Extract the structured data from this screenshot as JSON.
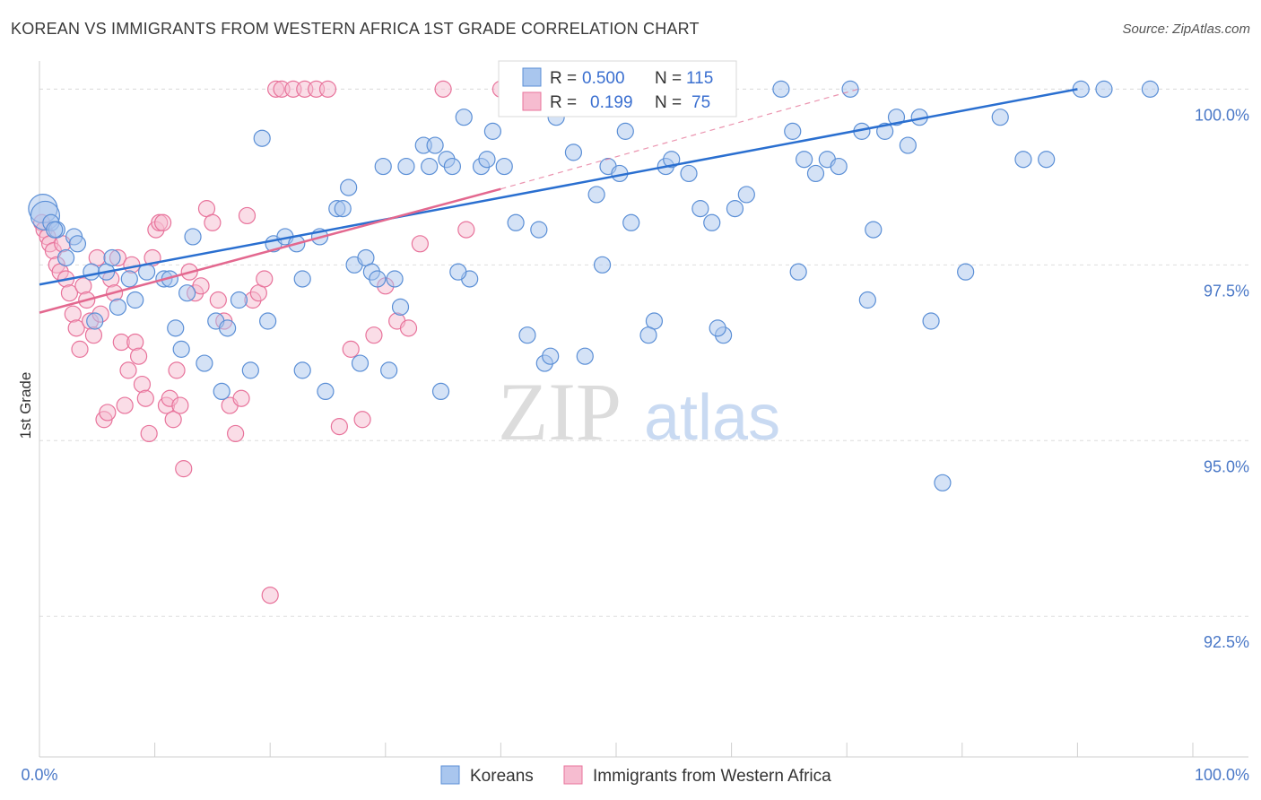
{
  "title": "KOREAN VS IMMIGRANTS FROM WESTERN AFRICA 1ST GRADE CORRELATION CHART",
  "source": "Source: ZipAtlas.com",
  "watermark": {
    "zip": "ZIP",
    "atlas": "atlas"
  },
  "colors": {
    "blue": "#5b8fd6",
    "blue_fill": "#a9c6ee",
    "pink": "#e8739b",
    "pink_fill": "#f6bcd0",
    "blue_line": "#2a6fd0",
    "pink_line": "#e3688f",
    "tick_text": "#4a78c7"
  },
  "stats_box": {
    "rows": [
      {
        "r_key": "R =",
        "r_val": "0.500",
        "n_key": "N =",
        "n_val": "115"
      },
      {
        "r_key": "R =",
        "r_val": "0.199",
        "n_key": "N =",
        "n_val": "75"
      }
    ]
  },
  "chart_data": {
    "type": "scatter",
    "title": "KOREAN VS IMMIGRANTS FROM WESTERN AFRICA 1ST GRADE CORRELATION CHART",
    "xlabel": "",
    "ylabel": "1st Grade",
    "xlim": [
      0,
      100
    ],
    "ylim": [
      90.5,
      100.4
    ],
    "x_tick_labels": [
      "0.0%",
      "100.0%"
    ],
    "y_ticks": [
      92.5,
      95.0,
      97.5,
      100.0
    ],
    "y_tick_labels": [
      "92.5%",
      "95.0%",
      "97.5%",
      "100.0%"
    ],
    "grid": true,
    "legend_position": "bottom",
    "series": [
      {
        "name": "Koreans",
        "R": 0.5,
        "N": 115,
        "trend": [
          [
            0,
            97.22
          ],
          [
            90,
            100.0
          ]
        ],
        "points": [
          [
            0.3,
            98.3
          ],
          [
            0.5,
            98.2
          ],
          [
            1.0,
            98.1
          ],
          [
            1.5,
            98.0
          ],
          [
            3.0,
            97.9
          ],
          [
            4.5,
            97.4
          ],
          [
            4.8,
            96.7
          ],
          [
            5.8,
            97.4
          ],
          [
            6.3,
            97.6
          ],
          [
            6.8,
            96.9
          ],
          [
            7.8,
            97.3
          ],
          [
            9.3,
            97.4
          ],
          [
            10.8,
            97.3
          ],
          [
            11.3,
            97.3
          ],
          [
            12.3,
            96.3
          ],
          [
            12.8,
            97.1
          ],
          [
            15.3,
            96.7
          ],
          [
            14.3,
            96.1
          ],
          [
            15.8,
            95.7
          ],
          [
            16.3,
            96.6
          ],
          [
            18.3,
            96.0
          ],
          [
            19.3,
            99.3
          ],
          [
            20.3,
            97.8
          ],
          [
            21.3,
            97.9
          ],
          [
            22.3,
            97.8
          ],
          [
            22.8,
            97.3
          ],
          [
            24.3,
            97.9
          ],
          [
            25.8,
            98.3
          ],
          [
            26.3,
            98.3
          ],
          [
            26.8,
            98.6
          ],
          [
            27.3,
            97.5
          ],
          [
            28.3,
            97.6
          ],
          [
            28.8,
            97.4
          ],
          [
            29.3,
            97.3
          ],
          [
            29.8,
            98.9
          ],
          [
            30.8,
            97.3
          ],
          [
            31.3,
            96.9
          ],
          [
            31.8,
            98.9
          ],
          [
            33.3,
            99.2
          ],
          [
            33.8,
            98.9
          ],
          [
            34.3,
            99.2
          ],
          [
            35.3,
            99.0
          ],
          [
            35.8,
            98.9
          ],
          [
            36.8,
            99.6
          ],
          [
            37.3,
            97.3
          ],
          [
            38.3,
            98.9
          ],
          [
            38.8,
            99.0
          ],
          [
            39.3,
            99.4
          ],
          [
            40.3,
            98.9
          ],
          [
            41.3,
            98.1
          ],
          [
            42.3,
            96.5
          ],
          [
            43.3,
            98.0
          ],
          [
            43.8,
            96.1
          ],
          [
            44.8,
            99.6
          ],
          [
            45.3,
            100.0
          ],
          [
            46.3,
            99.1
          ],
          [
            46.8,
            100.0
          ],
          [
            47.3,
            96.2
          ],
          [
            48.3,
            98.5
          ],
          [
            48.8,
            97.5
          ],
          [
            49.3,
            98.9
          ],
          [
            50.3,
            98.8
          ],
          [
            50.8,
            99.4
          ],
          [
            51.3,
            98.1
          ],
          [
            52.3,
            100.0
          ],
          [
            53.3,
            96.7
          ],
          [
            54.3,
            98.9
          ],
          [
            54.8,
            99.0
          ],
          [
            55.3,
            100.0
          ],
          [
            56.3,
            98.8
          ],
          [
            57.3,
            98.3
          ],
          [
            58.3,
            98.1
          ],
          [
            59.3,
            96.5
          ],
          [
            60.3,
            98.3
          ],
          [
            61.3,
            98.5
          ],
          [
            64.3,
            100.0
          ],
          [
            65.3,
            99.4
          ],
          [
            66.3,
            99.0
          ],
          [
            67.3,
            98.8
          ],
          [
            68.3,
            99.0
          ],
          [
            69.3,
            98.9
          ],
          [
            70.3,
            100.0
          ],
          [
            71.3,
            99.4
          ],
          [
            72.3,
            98.0
          ],
          [
            73.3,
            99.4
          ],
          [
            74.3,
            99.6
          ],
          [
            75.3,
            99.2
          ],
          [
            76.3,
            99.6
          ],
          [
            77.3,
            96.7
          ],
          [
            78.3,
            94.4
          ],
          [
            80.3,
            97.4
          ],
          [
            83.3,
            99.6
          ],
          [
            85.3,
            99.0
          ],
          [
            87.3,
            99.0
          ],
          [
            90.3,
            100.0
          ],
          [
            92.3,
            100.0
          ],
          [
            96.3,
            100.0
          ],
          [
            1.3,
            98.0
          ],
          [
            2.3,
            97.6
          ],
          [
            3.3,
            97.8
          ],
          [
            8.3,
            97.0
          ],
          [
            11.8,
            96.6
          ],
          [
            13.3,
            97.9
          ],
          [
            17.3,
            97.0
          ],
          [
            19.8,
            96.7
          ],
          [
            22.8,
            96.0
          ],
          [
            24.8,
            95.7
          ],
          [
            27.8,
            96.1
          ],
          [
            30.3,
            96.0
          ],
          [
            34.8,
            95.7
          ],
          [
            36.3,
            97.4
          ],
          [
            44.3,
            96.2
          ],
          [
            52.8,
            96.5
          ],
          [
            58.8,
            96.6
          ],
          [
            65.8,
            97.4
          ],
          [
            71.8,
            97.0
          ]
        ]
      },
      {
        "name": "Immigrants from Western Africa",
        "R": 0.199,
        "N": 75,
        "trend": [
          [
            0,
            96.82
          ],
          [
            40,
            98.58
          ]
        ],
        "trend_dashed": [
          [
            40,
            98.58
          ],
          [
            71,
            100.0
          ]
        ],
        "points": [
          [
            0.2,
            98.1
          ],
          [
            0.4,
            98.0
          ],
          [
            0.7,
            97.9
          ],
          [
            0.9,
            97.8
          ],
          [
            1.2,
            97.7
          ],
          [
            1.5,
            97.5
          ],
          [
            1.8,
            97.4
          ],
          [
            2.0,
            97.8
          ],
          [
            2.3,
            97.3
          ],
          [
            2.6,
            97.1
          ],
          [
            2.9,
            96.8
          ],
          [
            3.2,
            96.6
          ],
          [
            3.5,
            96.3
          ],
          [
            3.8,
            97.2
          ],
          [
            4.1,
            97.0
          ],
          [
            4.4,
            96.7
          ],
          [
            4.7,
            96.5
          ],
          [
            5.0,
            97.6
          ],
          [
            5.3,
            96.8
          ],
          [
            5.6,
            95.3
          ],
          [
            5.9,
            95.4
          ],
          [
            6.2,
            97.3
          ],
          [
            6.5,
            97.1
          ],
          [
            6.8,
            97.6
          ],
          [
            7.1,
            96.4
          ],
          [
            7.4,
            95.5
          ],
          [
            7.7,
            96.0
          ],
          [
            8.0,
            97.5
          ],
          [
            8.3,
            96.4
          ],
          [
            8.6,
            96.2
          ],
          [
            8.9,
            95.8
          ],
          [
            9.2,
            95.6
          ],
          [
            9.5,
            95.1
          ],
          [
            9.8,
            97.6
          ],
          [
            10.1,
            98.0
          ],
          [
            10.4,
            98.1
          ],
          [
            10.7,
            98.1
          ],
          [
            11.0,
            95.5
          ],
          [
            11.3,
            95.6
          ],
          [
            11.6,
            95.3
          ],
          [
            11.9,
            96.0
          ],
          [
            12.2,
            95.5
          ],
          [
            12.5,
            94.6
          ],
          [
            13.0,
            97.4
          ],
          [
            13.5,
            97.1
          ],
          [
            14.0,
            97.2
          ],
          [
            14.5,
            98.3
          ],
          [
            15.0,
            98.1
          ],
          [
            15.5,
            97.0
          ],
          [
            16.0,
            96.7
          ],
          [
            16.5,
            95.5
          ],
          [
            17.0,
            95.1
          ],
          [
            17.5,
            95.6
          ],
          [
            18.0,
            98.2
          ],
          [
            18.5,
            97.0
          ],
          [
            19.0,
            97.1
          ],
          [
            19.5,
            97.3
          ],
          [
            20.0,
            92.8
          ],
          [
            20.5,
            100.0
          ],
          [
            21.0,
            100.0
          ],
          [
            22.0,
            100.0
          ],
          [
            23.0,
            100.0
          ],
          [
            24.0,
            100.0
          ],
          [
            25.0,
            100.0
          ],
          [
            26.0,
            95.2
          ],
          [
            27.0,
            96.3
          ],
          [
            28.0,
            95.3
          ],
          [
            29.0,
            96.5
          ],
          [
            30.0,
            97.2
          ],
          [
            31.0,
            96.7
          ],
          [
            32.0,
            96.6
          ],
          [
            33.0,
            97.8
          ],
          [
            35.0,
            100.0
          ],
          [
            37.0,
            98.0
          ],
          [
            40.0,
            100.0
          ]
        ]
      }
    ]
  }
}
